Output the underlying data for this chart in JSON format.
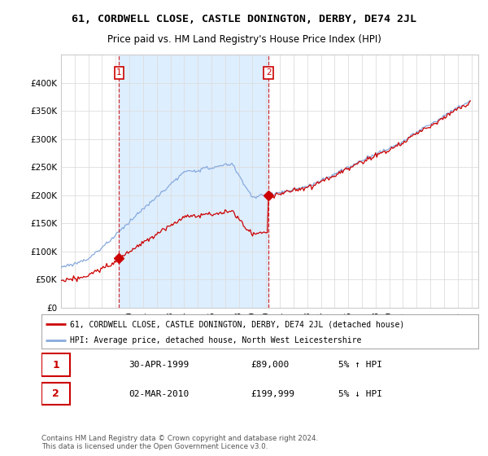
{
  "title": "61, CORDWELL CLOSE, CASTLE DONINGTON, DERBY, DE74 2JL",
  "subtitle": "Price paid vs. HM Land Registry's House Price Index (HPI)",
  "red_label": "61, CORDWELL CLOSE, CASTLE DONINGTON, DERBY, DE74 2JL (detached house)",
  "blue_label": "HPI: Average price, detached house, North West Leicestershire",
  "footnote": "Contains HM Land Registry data © Crown copyright and database right 2024.\nThis data is licensed under the Open Government Licence v3.0.",
  "sale1_date": "30-APR-1999",
  "sale1_price": "£89,000",
  "sale1_hpi": "5% ↑ HPI",
  "sale2_date": "02-MAR-2010",
  "sale2_price": "£199,999",
  "sale2_hpi": "5% ↓ HPI",
  "sale1_t": 1999.25,
  "sale1_val": 89000,
  "sale2_t": 2010.17,
  "sale2_val": 199999,
  "ylim": [
    0,
    450000
  ],
  "yticks": [
    0,
    50000,
    100000,
    150000,
    200000,
    250000,
    300000,
    350000,
    400000
  ],
  "xlim_start": 1995.0,
  "xlim_end": 2025.5,
  "background_color": "#ffffff",
  "grid_color": "#dddddd",
  "shade_color": "#ddeeff",
  "red_color": "#cc0000",
  "blue_color": "#88aadd",
  "title_fontsize": 9.5,
  "subtitle_fontsize": 8.5
}
